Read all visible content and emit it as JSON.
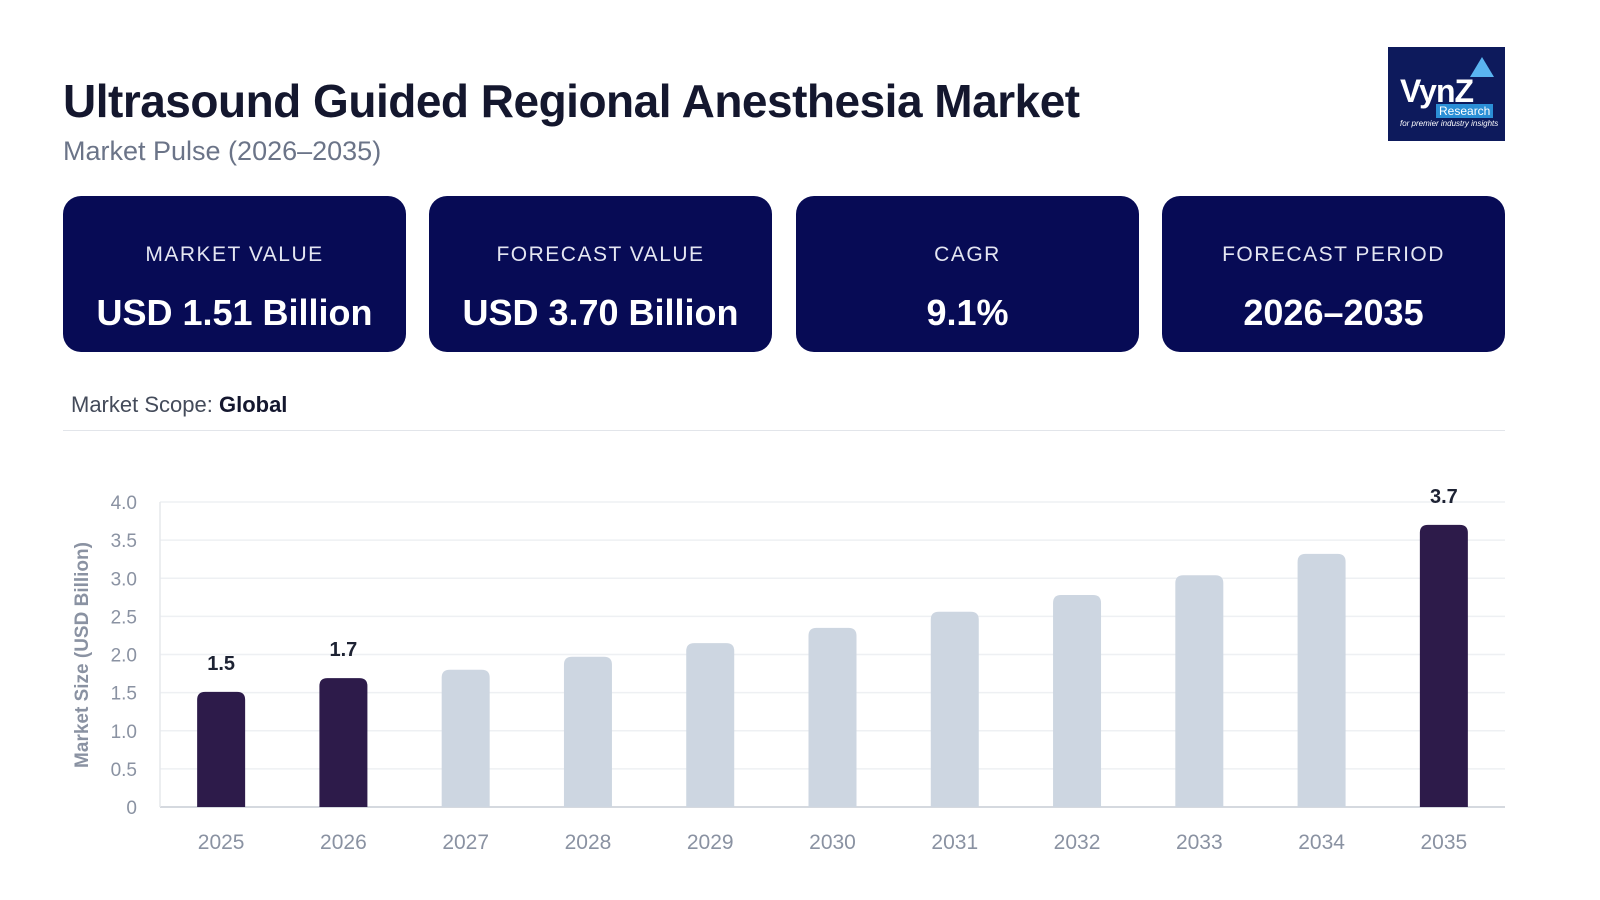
{
  "header": {
    "title": "Ultrasound Guided Regional Anesthesia Market",
    "subtitle": "Market Pulse (2026–2035)"
  },
  "logo": {
    "text": "VynZ",
    "sub": "Research",
    "tagline": "for premier industry insights"
  },
  "cards": [
    {
      "label": "MARKET VALUE",
      "value": "USD 1.51 Billion"
    },
    {
      "label": "FORECAST VALUE",
      "value": "USD 3.70 Billion"
    },
    {
      "label": "CAGR",
      "value": "9.1%"
    },
    {
      "label": "FORECAST PERIOD",
      "value": "2026–2035"
    }
  ],
  "scope": {
    "label": "Market Scope:",
    "value": "Global"
  },
  "colors": {
    "card_bg": "#070b55",
    "highlight_bar": "#2d1b4a",
    "bar": "#cdd6e1"
  },
  "chart_data": {
    "type": "bar",
    "title": "",
    "xlabel": "",
    "ylabel": "Market Size (USD Billion)",
    "ylim": [
      0,
      4.0
    ],
    "yticks": [
      "0",
      "0.5",
      "1.0",
      "1.5",
      "2.0",
      "2.5",
      "3.0",
      "3.5",
      "4.0"
    ],
    "grid": true,
    "categories": [
      "2025",
      "2026",
      "2027",
      "2028",
      "2029",
      "2030",
      "2031",
      "2032",
      "2033",
      "2034",
      "2035"
    ],
    "values": [
      1.51,
      1.69,
      1.8,
      1.97,
      2.15,
      2.35,
      2.56,
      2.78,
      3.04,
      3.32,
      3.7
    ],
    "highlighted": [
      true,
      true,
      false,
      false,
      false,
      false,
      false,
      false,
      false,
      false,
      true
    ],
    "data_labels": [
      "1.5",
      "1.7",
      "",
      "",
      "",
      "",
      "",
      "",
      "",
      "",
      "3.7"
    ]
  }
}
